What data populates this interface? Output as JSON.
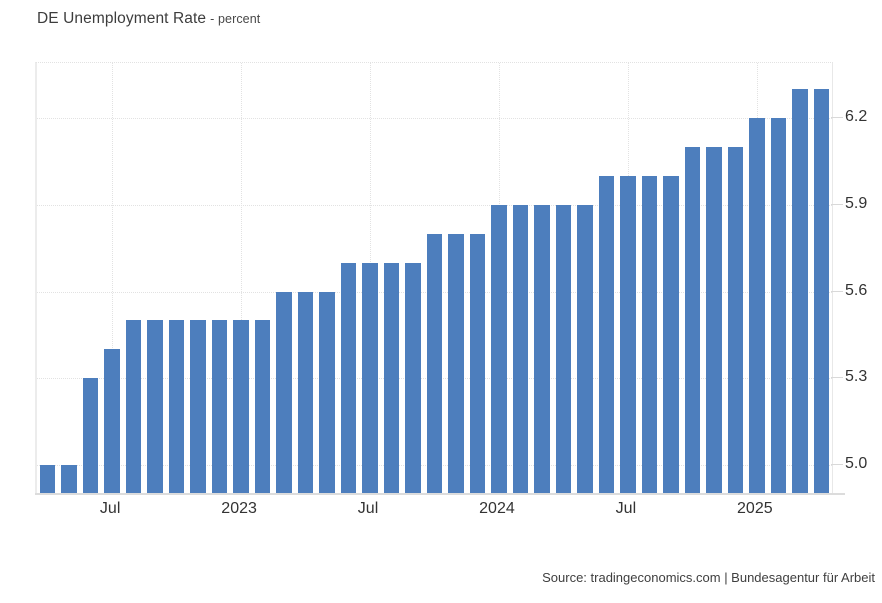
{
  "title": {
    "main": "DE Unemployment Rate",
    "suffix": "- percent"
  },
  "source": "Source: tradingeconomics.com | Bundesagentur für Arbeit",
  "colors": {
    "bar": "#4d7ebd",
    "grid": "#e2e2e2",
    "axis_text": "#333333",
    "title_text": "#3d3d3d",
    "baseline": "#dcdcdc"
  },
  "chart_data": {
    "type": "bar",
    "title": "DE Unemployment Rate",
    "ylabel": "percent",
    "xlabel": "",
    "grid": "dotted",
    "legend_position": "none",
    "ylim": [
      4.9,
      6.39
    ],
    "yticks": [
      5.0,
      5.3,
      5.6,
      5.9,
      6.2
    ],
    "ytick_labels": [
      "5.0",
      "5.3",
      "5.6",
      "5.9",
      "6.2"
    ],
    "categories": [
      "Apr 2022",
      "May 2022",
      "Jun 2022",
      "Jul 2022",
      "Aug 2022",
      "Sep 2022",
      "Oct 2022",
      "Nov 2022",
      "Dec 2022",
      "Jan 2023",
      "Feb 2023",
      "Mar 2023",
      "Apr 2023",
      "May 2023",
      "Jun 2023",
      "Jul 2023",
      "Aug 2023",
      "Sep 2023",
      "Oct 2023",
      "Nov 2023",
      "Dec 2023",
      "Jan 2024",
      "Feb 2024",
      "Mar 2024",
      "Apr 2024",
      "May 2024",
      "Jun 2024",
      "Jul 2024",
      "Aug 2024",
      "Sep 2024",
      "Oct 2024",
      "Nov 2024",
      "Dec 2024",
      "Jan 2025",
      "Feb 2025",
      "Mar 2025",
      "Apr 2025"
    ],
    "values": [
      5.0,
      5.0,
      5.3,
      5.4,
      5.5,
      5.5,
      5.5,
      5.5,
      5.5,
      5.5,
      5.5,
      5.6,
      5.6,
      5.6,
      5.7,
      5.7,
      5.7,
      5.7,
      5.8,
      5.8,
      5.8,
      5.9,
      5.9,
      5.9,
      5.9,
      5.9,
      6.0,
      6.0,
      6.0,
      6.0,
      6.1,
      6.1,
      6.1,
      6.2,
      6.2,
      6.3,
      6.3
    ],
    "xtick_labels": [
      {
        "index": 3,
        "label": "Jul"
      },
      {
        "index": 9,
        "label": "2023"
      },
      {
        "index": 15,
        "label": "Jul"
      },
      {
        "index": 21,
        "label": "2024"
      },
      {
        "index": 27,
        "label": "Jul"
      },
      {
        "index": 33,
        "label": "2025"
      }
    ]
  }
}
